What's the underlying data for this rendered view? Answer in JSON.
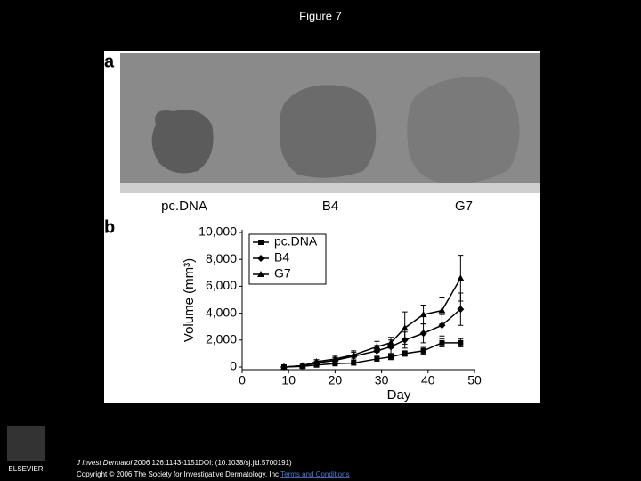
{
  "slide_title": "Figure 7",
  "panel_a": {
    "label": "a",
    "samples": [
      "pc.DNA",
      "B4",
      "G7"
    ]
  },
  "panel_b": {
    "label": "b"
  },
  "chart_data": {
    "type": "line",
    "x_label": "Day",
    "y_label": "Volume (mm³)",
    "x": [
      9,
      13,
      16,
      20,
      24,
      29,
      32,
      35,
      39,
      43,
      47
    ],
    "series": [
      {
        "name": "pc.DNA",
        "color": "#000000",
        "marker": "square",
        "values": [
          0,
          50,
          150,
          250,
          300,
          600,
          750,
          1000,
          1200,
          1800,
          1800
        ],
        "errors": [
          0,
          30,
          60,
          80,
          100,
          150,
          200,
          200,
          250,
          300,
          300
        ]
      },
      {
        "name": "B4",
        "color": "#000000",
        "marker": "diamond",
        "values": [
          0,
          100,
          300,
          500,
          800,
          1200,
          1500,
          2000,
          2500,
          3100,
          4300
        ],
        "errors": [
          0,
          50,
          150,
          200,
          300,
          400,
          500,
          600,
          700,
          800,
          1200
        ]
      },
      {
        "name": "G7",
        "color": "#000000",
        "marker": "triangle",
        "values": [
          0,
          100,
          400,
          600,
          900,
          1500,
          1800,
          2900,
          3900,
          4200,
          6600
        ],
        "errors": [
          0,
          50,
          150,
          200,
          300,
          400,
          400,
          1200,
          700,
          1000,
          1700
        ]
      }
    ],
    "xlim": [
      0,
      50
    ],
    "ylim": [
      0,
      10000
    ],
    "xticks": [
      0,
      10,
      20,
      30,
      40,
      50
    ],
    "yticks": [
      0,
      {
        "value": 2000,
        "label": "2,000"
      },
      {
        "value": 4000,
        "label": "4,000"
      },
      {
        "value": 6000,
        "label": "6,000"
      },
      {
        "value": 8000,
        "label": "8,000"
      },
      {
        "value": 10000,
        "label": "10,000"
      }
    ],
    "legend": "upper left",
    "error_bars": true
  },
  "footer": {
    "journal": "J Invest Dermatol",
    "citation": " 2006 126:1143-1151DOI: (10.1038/sj.jid.5700191)",
    "copyright": "Copyright © 2006 The Society for Investigative Dermatology, Inc ",
    "link": "Terms and Conditions",
    "publisher": "ELSEVIER"
  }
}
